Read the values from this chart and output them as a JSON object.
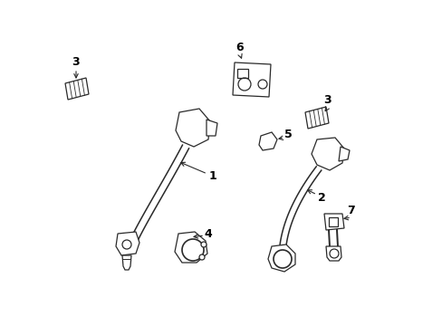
{
  "bg_color": "#ffffff",
  "line_color": "#2a2a2a",
  "label_color": "#000000",
  "figsize": [
    4.89,
    3.6
  ],
  "dpi": 100,
  "lw": 0.9
}
